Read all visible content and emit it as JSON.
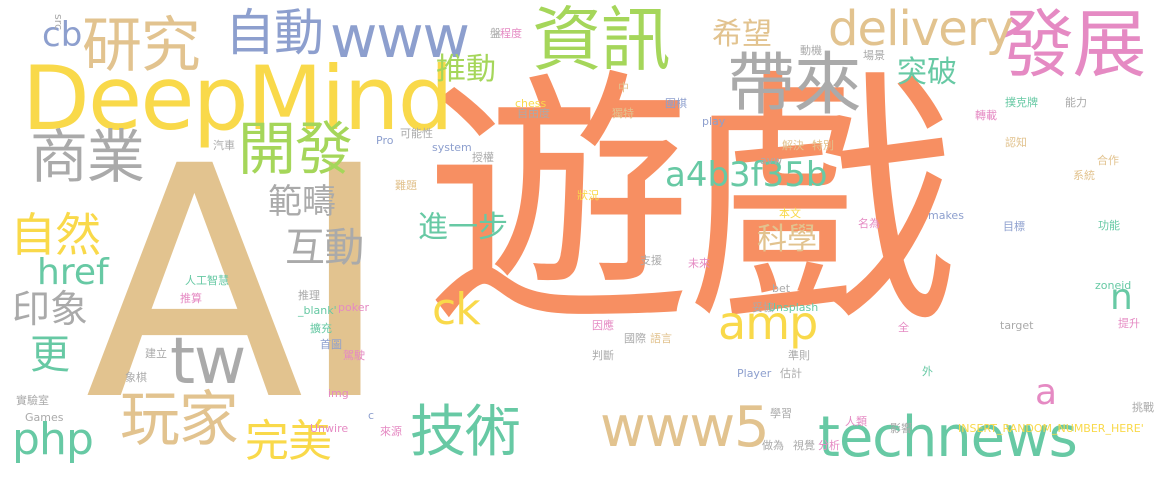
{
  "palette": {
    "orange": "#f78f62",
    "tan": "#e2c38f",
    "yellow": "#f9d94a",
    "grey": "#aaaaaa",
    "green": "#a5d65a",
    "teal": "#67c9a4",
    "blue": "#8d9fce",
    "pink": "#e58ac3"
  },
  "words": [
    {
      "text": "遊戲",
      "color": "orange"
    },
    {
      "text": "AI",
      "color": "tan"
    },
    {
      "text": "DeepMind",
      "color": "yellow"
    },
    {
      "text": "資訊",
      "color": "green"
    },
    {
      "text": "發展",
      "color": "pink"
    },
    {
      "text": "帶來",
      "color": "grey"
    },
    {
      "text": "研究",
      "color": "tan"
    },
    {
      "text": "自動",
      "color": "blue"
    },
    {
      "text": "www",
      "color": "blue"
    },
    {
      "text": "delivery",
      "color": "tan"
    },
    {
      "text": "商業",
      "color": "grey"
    },
    {
      "text": "開發",
      "color": "green"
    },
    {
      "text": "推動",
      "color": "green"
    },
    {
      "text": "希望",
      "color": "tan"
    },
    {
      "text": "突破",
      "color": "teal"
    },
    {
      "text": "a4b3f35b",
      "color": "teal"
    },
    {
      "text": "範疇",
      "color": "grey"
    },
    {
      "text": "互動",
      "color": "grey"
    },
    {
      "text": "進一步",
      "color": "teal"
    },
    {
      "text": "科學",
      "color": "tan"
    },
    {
      "text": "自然",
      "color": "yellow"
    },
    {
      "text": "href",
      "color": "teal"
    },
    {
      "text": "印象",
      "color": "grey"
    },
    {
      "text": "更",
      "color": "teal"
    },
    {
      "text": "cb",
      "color": "blue"
    },
    {
      "text": "tw",
      "color": "grey"
    },
    {
      "text": "amp",
      "color": "yellow"
    },
    {
      "text": "ck",
      "color": "yellow"
    },
    {
      "text": "玩家",
      "color": "tan"
    },
    {
      "text": "php",
      "color": "teal"
    },
    {
      "text": "完美",
      "color": "yellow"
    },
    {
      "text": "技術",
      "color": "teal"
    },
    {
      "text": "www5",
      "color": "tan"
    },
    {
      "text": "technews",
      "color": "teal"
    },
    {
      "text": "n",
      "color": "teal"
    },
    {
      "text": "a",
      "color": "pink"
    },
    {
      "text": "src",
      "color": "grey"
    },
    {
      "text": "盤",
      "color": "grey"
    },
    {
      "text": "程度",
      "color": "pink"
    },
    {
      "text": "動機",
      "color": "grey"
    },
    {
      "text": "場景",
      "color": "grey"
    },
    {
      "text": "中",
      "color": "tan"
    },
    {
      "text": "圍棋",
      "color": "blue"
    },
    {
      "text": "撲克牌",
      "color": "teal"
    },
    {
      "text": "chess",
      "color": "yellow"
    },
    {
      "text": "轉載",
      "color": "pink"
    },
    {
      "text": "能力",
      "color": "grey"
    },
    {
      "text": "獨特",
      "color": "tan"
    },
    {
      "text": "自由度",
      "color": "grey"
    },
    {
      "text": "play",
      "color": "blue"
    },
    {
      "text": "Pro",
      "color": "blue"
    },
    {
      "text": "可能性",
      "color": "grey"
    },
    {
      "text": "汽車",
      "color": "grey"
    },
    {
      "text": "system",
      "color": "blue"
    },
    {
      "text": "授權",
      "color": "grey"
    },
    {
      "text": "解決",
      "color": "tan"
    },
    {
      "text": "特別",
      "color": "tan"
    },
    {
      "text": "認知",
      "color": "tan"
    },
    {
      "text": "合作",
      "color": "tan"
    },
    {
      "text": "avw",
      "color": "grey"
    },
    {
      "text": "難題",
      "color": "tan"
    },
    {
      "text": "狀況",
      "color": "yellow"
    },
    {
      "text": "系統",
      "color": "tan"
    },
    {
      "text": "本文",
      "color": "yellow"
    },
    {
      "text": "makes",
      "color": "blue"
    },
    {
      "text": "名為",
      "color": "pink"
    },
    {
      "text": "目標",
      "color": "blue"
    },
    {
      "text": "功能",
      "color": "teal"
    },
    {
      "text": "支援",
      "color": "grey"
    },
    {
      "text": "未來",
      "color": "pink"
    },
    {
      "text": "人工智慧",
      "color": "teal"
    },
    {
      "text": "推算",
      "color": "pink"
    },
    {
      "text": "推理",
      "color": "grey"
    },
    {
      "text": "_blank'",
      "color": "teal"
    },
    {
      "text": "poker",
      "color": "pink"
    },
    {
      "text": "bet",
      "color": "grey"
    },
    {
      "text": "妥協",
      "color": "grey"
    },
    {
      "text": "Unsplash",
      "color": "teal"
    },
    {
      "text": "zoneid",
      "color": "teal"
    },
    {
      "text": "擴充",
      "color": "teal"
    },
    {
      "text": "首圖",
      "color": "blue"
    },
    {
      "text": "建立",
      "color": "grey"
    },
    {
      "text": "駕駛",
      "color": "pink"
    },
    {
      "text": "因應",
      "color": "pink"
    },
    {
      "text": "國際",
      "color": "grey"
    },
    {
      "text": "語言",
      "color": "tan"
    },
    {
      "text": "target",
      "color": "grey"
    },
    {
      "text": "全",
      "color": "pink"
    },
    {
      "text": "提升",
      "color": "pink"
    },
    {
      "text": "判斷",
      "color": "grey"
    },
    {
      "text": "準則",
      "color": "grey"
    },
    {
      "text": "象棋",
      "color": "grey"
    },
    {
      "text": "img",
      "color": "pink"
    },
    {
      "text": "Player",
      "color": "blue"
    },
    {
      "text": "估計",
      "color": "grey"
    },
    {
      "text": "外",
      "color": "teal"
    },
    {
      "text": "實驗室",
      "color": "grey"
    },
    {
      "text": "Games",
      "color": "grey"
    },
    {
      "text": "c",
      "color": "blue"
    },
    {
      "text": "學習",
      "color": "grey"
    },
    {
      "text": "人類",
      "color": "pink"
    },
    {
      "text": "影響",
      "color": "grey"
    },
    {
      "text": "挑戰",
      "color": "grey"
    },
    {
      "text": "Unwire",
      "color": "pink"
    },
    {
      "text": "來源",
      "color": "pink"
    },
    {
      "text": "INSERT_RANDOM_NUMBER_HERE'",
      "color": "yellow"
    },
    {
      "text": "做為",
      "color": "grey"
    },
    {
      "text": "視覺",
      "color": "grey"
    },
    {
      "text": "分析",
      "color": "pink"
    }
  ]
}
